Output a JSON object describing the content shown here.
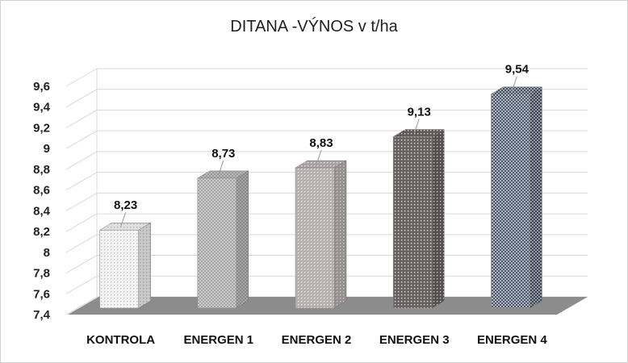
{
  "chart_data": {
    "type": "bar",
    "title": "DITANA -VÝNOS v t/ha",
    "categories": [
      "KONTROLA",
      "ENERGEN 1",
      "ENERGEN 2",
      "ENERGEN 3",
      "ENERGEN 4"
    ],
    "values": [
      8.23,
      8.73,
      8.83,
      9.13,
      9.54
    ],
    "data_labels": [
      "8,23",
      "8,73",
      "8,83",
      "9,13",
      "9,54"
    ],
    "ylim": [
      7.4,
      9.6
    ],
    "yticks": [
      "7,4",
      "7,6",
      "7,8",
      "8",
      "8,2",
      "8,4",
      "8,6",
      "8,8",
      "9",
      "9,2",
      "9,4",
      "9,6"
    ],
    "grid": true,
    "legend": "none",
    "colors": {
      "bar_fills": [
        "#f4f4f4",
        "#d6d6d6",
        "#b8b0b0",
        "#6a6262",
        "#2c3648"
      ],
      "bar_dots": [
        "#bdbdbd",
        "#8f8f8f",
        "#ffffff",
        "#ffffff",
        "#c8cedb"
      ],
      "floor": "#8c8c8c",
      "grid": "#d9d9d9"
    }
  }
}
